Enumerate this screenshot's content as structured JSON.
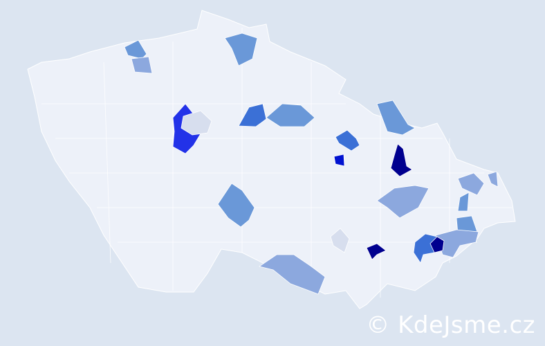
{
  "map": {
    "colors": {
      "background": "#dce5f1",
      "base": "#edf1f9",
      "level_1": "#d7deee",
      "level_2": "#8ca8de",
      "level_3": "#6a98d8",
      "level_4": "#3b70d6",
      "level_5": "#2232e8",
      "level_6": "#0012d0",
      "level_7": "#00008f"
    }
  },
  "watermark": {
    "text": "© KdeJsme.cz"
  }
}
